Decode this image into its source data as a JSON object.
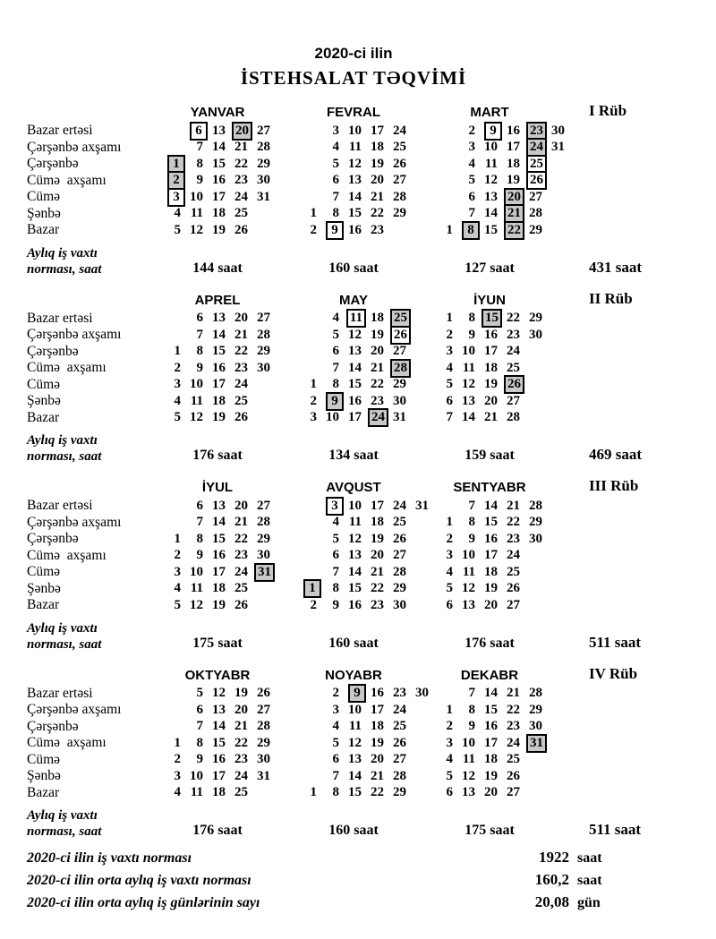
{
  "title": {
    "line1": "2020-ci ilin",
    "line2": "İSTEHSALAT TƏQVİMİ"
  },
  "day_labels": [
    "Bazar ertəsi",
    "Çərşənbə axşamı",
    "Çərşənbə",
    "Cümə  axşamı",
    "Cümə",
    "Şənbə",
    "Bazar"
  ],
  "norm_label_lines": [
    "Aylıq iş vaxtı",
    "norması, saat"
  ],
  "colors": {
    "holiday_box_bg": "#c8c8c8",
    "box_border": "#000000",
    "text": "#000000",
    "background": "#ffffff"
  },
  "quarters": [
    {
      "label": "I Rüb",
      "total": "431 saat",
      "months": [
        {
          "name": "YANVAR",
          "hours": "144 saat",
          "rows": [
            ". 6# 13 20* 27 .",
            ". 7 14 21 28 .",
            "1* 8 15 22 29 .",
            "2* 9 16 23 30 .",
            "3# 10 17 24 31 .",
            "4 11 18 25 . .",
            "5 12 19 26 . ."
          ]
        },
        {
          "name": "FEVRAL",
          "hours": "160 saat",
          "rows": [
            ". 3 10 17 24 .",
            ". 4 11 18 25 .",
            ". 5 12 19 26 .",
            ". 6 13 20 27 .",
            ". 7 14 21 28 .",
            "1 8 15 22 29 .",
            "2 9# 16 23 . ."
          ]
        },
        {
          "name": "MART",
          "hours": "127 saat",
          "rows": [
            ". 2 9# 16 23* 30",
            ". 3 10 17 24* 31",
            ". 4 11 18 25# .",
            ". 5 12 19 26# .",
            ". 6 13 20* 27 .",
            ". 7 14 21* 28 .",
            "1 8* 15 22* 29 ."
          ]
        }
      ]
    },
    {
      "label": "II Rüb",
      "total": "469 saat",
      "months": [
        {
          "name": "APREL",
          "hours": "176 saat",
          "rows": [
            ". 6 13 20 27 .",
            ". 7 14 21 28 .",
            "1 8 15 22 29 .",
            "2 9 16 23 30 .",
            "3 10 17 24 . .",
            "4 11 18 25 . .",
            "5 12 19 26 . ."
          ]
        },
        {
          "name": "MAY",
          "hours": "134 saat",
          "rows": [
            ". 4 11# 18 25* .",
            ". 5 12 19 26# .",
            ". 6 13 20 27 .",
            ". 7 14 21 28* .",
            "1 8 15 22 29 .",
            "2 9* 16 23 30 .",
            "3 10 17 24* 31 ."
          ]
        },
        {
          "name": "İYUN",
          "hours": "159 saat",
          "rows": [
            "1 8 15* 22 29 .",
            "2 9 16 23 30 .",
            "3 10 17 24 . .",
            "4 11 18 25 . .",
            "5 12 19 26* . .",
            "6 13 20 27 . .",
            "7 14 21 28 . ."
          ]
        }
      ]
    },
    {
      "label": "III Rüb",
      "total": "511 saat",
      "months": [
        {
          "name": "İYUL",
          "hours": "175 saat",
          "rows": [
            ". 6 13 20 27 .",
            ". 7 14 21 28 .",
            "1 8 15 22 29 .",
            "2 9 16 23 30 .",
            "3 10 17 24 31* .",
            "4 11 18 25 . .",
            "5 12 19 26 . ."
          ]
        },
        {
          "name": "AVQUST",
          "hours": "160 saat",
          "rows": [
            ". 3# 10 17 24 31",
            ". 4 11 18 25 .",
            ". 5 12 19 26 .",
            ". 6 13 20 27 .",
            ". 7 14 21 28 .",
            "1* 8 15 22 29 .",
            "2 9 16 23 30 ."
          ]
        },
        {
          "name": "SENTYABR",
          "hours": "176 saat",
          "rows": [
            ". 7 14 21 28 .",
            "1 8 15 22 29 .",
            "2 9 16 23 30 .",
            "3 10 17 24 . .",
            "4 11 18 25 . .",
            "5 12 19 26 . .",
            "6 13 20 27 . ."
          ]
        }
      ]
    },
    {
      "label": "IV Rüb",
      "total": "511 saat",
      "months": [
        {
          "name": "OKTYABR",
          "hours": "176 saat",
          "rows": [
            ". 5 12 19 26 .",
            ". 6 13 20 27 .",
            ". 7 14 21 28 .",
            "1 8 15 22 29 .",
            "2 9 16 23 30 .",
            "3 10 17 24 31 .",
            "4 11 18 25 . ."
          ]
        },
        {
          "name": "NOYABR",
          "hours": "160 saat",
          "rows": [
            ". 2 9* 16 23 30",
            ". 3 10 17 24 .",
            ". 4 11 18 25 .",
            ". 5 12 19 26 .",
            ". 6 13 20 27 .",
            ". 7 14 21 28 .",
            "1 8 15 22 29 ."
          ]
        },
        {
          "name": "DEKABR",
          "hours": "175 saat",
          "rows": [
            ". 7 14 21 28 .",
            "1 8 15 22 29 .",
            "2 9 16 23 30 .",
            "3 10 17 24 31* .",
            "4 11 18 25 . .",
            "5 12 19 26 . .",
            "6 13 20 27 . ."
          ]
        }
      ]
    }
  ],
  "summary": [
    {
      "label": "2020-ci ilin iş vaxtı norması",
      "value": "1922",
      "unit": "saat"
    },
    {
      "label": "2020-ci ilin orta aylıq iş vaxtı norması",
      "value": "160,2",
      "unit": "saat"
    },
    {
      "label": "2020-ci ilin orta aylıq iş günlərinin sayı",
      "value": "20,08",
      "unit": "gün"
    }
  ]
}
